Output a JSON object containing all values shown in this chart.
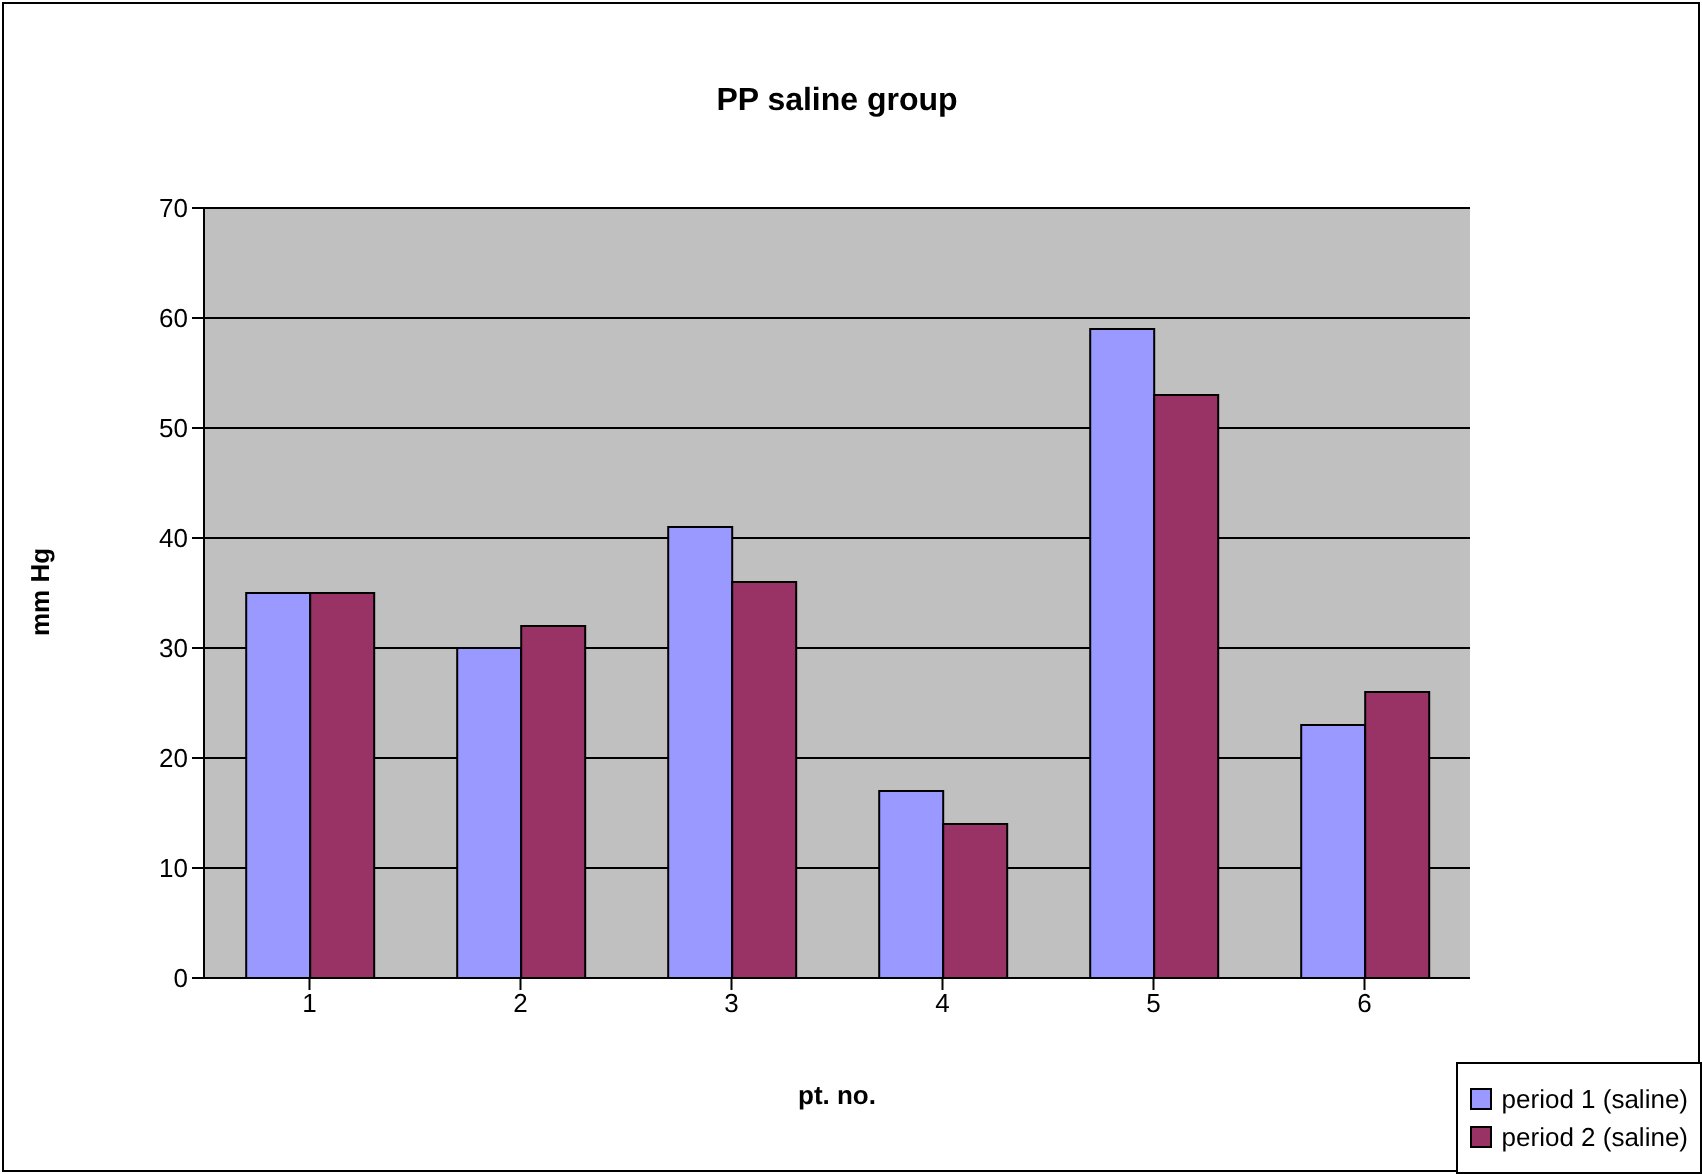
{
  "chart_data": {
    "type": "bar",
    "title": "PP saline group",
    "xlabel": "pt. no.",
    "ylabel": "mm Hg",
    "categories": [
      "1",
      "2",
      "3",
      "4",
      "5",
      "6"
    ],
    "series": [
      {
        "name": "period 1 (saline)",
        "color": "#9999ff",
        "values": [
          35,
          30,
          41,
          17,
          59,
          23
        ]
      },
      {
        "name": "period 2 (saline)",
        "color": "#993366",
        "values": [
          35,
          32,
          36,
          14,
          53,
          26
        ]
      }
    ],
    "ylim": [
      0,
      70
    ],
    "yticks": [
      0,
      10,
      20,
      30,
      40,
      50,
      60,
      70
    ],
    "grid": "y",
    "legend": "bottom right"
  }
}
